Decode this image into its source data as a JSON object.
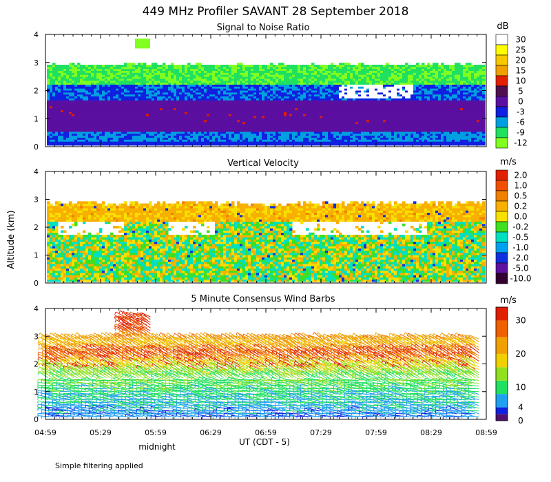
{
  "title": "449 MHz Profiler SAVANT 28 September 2018",
  "panels": {
    "snr": {
      "title": "Signal to Noise Ratio",
      "unit": "dB"
    },
    "vv": {
      "title": "Vertical Velocity",
      "unit": "m/s"
    },
    "wind": {
      "title": "5 Minute Consensus Wind Barbs",
      "unit": "m/s"
    }
  },
  "y_axis_label": "Altitude (km)",
  "x_axis_label": "UT  (CDT - 5)",
  "midnight_label": "midnight",
  "footer_note": "Simple filtering applied",
  "chart_data": [
    {
      "type": "heatmap",
      "title": "Signal to Noise Ratio",
      "xlabel": "UT  (CDT - 5)",
      "ylabel": "Altitude (km)",
      "ylim": [
        0,
        4
      ],
      "yticks": [
        "0",
        "1",
        "2",
        "3",
        "4"
      ],
      "xticks": [
        "04:59",
        "05:29",
        "05:59",
        "06:29",
        "06:59",
        "07:29",
        "07:59",
        "08:29",
        "08:59"
      ],
      "colorbar": {
        "unit": "dB",
        "labels": [
          "30",
          "25",
          "20",
          "15",
          "10",
          "5",
          "0",
          "-3",
          "-6",
          "-9",
          "-12"
        ],
        "colors": [
          "#ffffff",
          "#ffff00",
          "#f8c800",
          "#f0a000",
          "#e02000",
          "#501050",
          "#5a0fa0",
          "#1020e0",
          "#00a0e0",
          "#20e060",
          "#80ff20"
        ]
      },
      "layers": [
        {
          "alt_range_km": [
            0.0,
            0.15
          ],
          "snr_db": "-3 to 0"
        },
        {
          "alt_range_km": [
            0.15,
            0.5
          ],
          "snr_db": "-6 to -3"
        },
        {
          "alt_range_km": [
            0.5,
            1.6
          ],
          "snr_db": "0 to 5"
        },
        {
          "alt_range_km": [
            1.6,
            2.2
          ],
          "snr_db": "-6 to 0"
        },
        {
          "alt_range_km": [
            2.2,
            2.9
          ],
          "snr_db": "-12 to -6"
        }
      ]
    },
    {
      "type": "heatmap",
      "title": "Vertical Velocity",
      "xlabel": "UT  (CDT - 5)",
      "ylabel": "Altitude (km)",
      "ylim": [
        0,
        4
      ],
      "yticks": [
        "0",
        "1",
        "2",
        "3",
        "4"
      ],
      "colorbar": {
        "unit": "m/s",
        "labels": [
          "2.0",
          "1.0",
          "0.5",
          "0.2",
          "0.0",
          "-0.2",
          "-0.5",
          "-1.0",
          "-2.0",
          "-5.0",
          "-10.0"
        ],
        "colors": [
          "#e02000",
          "#f05000",
          "#f08000",
          "#f8b000",
          "#f8e000",
          "#40e020",
          "#00e0c0",
          "#00a0f0",
          "#1030e0",
          "#6010a0",
          "#300030"
        ]
      },
      "typical_range_m_s": [
        -0.5,
        0.5
      ],
      "data_top_km": 2.9
    },
    {
      "type": "scatter",
      "title": "5 Minute Consensus Wind Barbs",
      "xlabel": "UT  (CDT - 5)",
      "ylabel": "Altitude (km)",
      "ylim": [
        0,
        4
      ],
      "yticks": [
        "0",
        "1",
        "2",
        "3",
        "4"
      ],
      "colorbar": {
        "unit": "m/s",
        "labels": [
          "30",
          "20",
          "10",
          "4",
          "0"
        ],
        "segments": [
          {
            "range": [
              0,
              2
            ],
            "color": "#501070"
          },
          {
            "range": [
              2,
              4
            ],
            "color": "#1020e0"
          },
          {
            "range": [
              4,
              8
            ],
            "color": "#20a0f0"
          },
          {
            "range": [
              8,
              12
            ],
            "color": "#20e060"
          },
          {
            "range": [
              12,
              16
            ],
            "color": "#90e020"
          },
          {
            "range": [
              16,
              20
            ],
            "color": "#f0d000"
          },
          {
            "range": [
              20,
              25
            ],
            "color": "#f0a000"
          },
          {
            "range": [
              25,
              30
            ],
            "color": "#f06000"
          },
          {
            "range": [
              30,
              34
            ],
            "color": "#e02000"
          }
        ]
      },
      "wind_profile": [
        {
          "alt_km": 0.3,
          "speed_m_s": 6
        },
        {
          "alt_km": 0.9,
          "speed_m_s": 9
        },
        {
          "alt_km": 1.5,
          "speed_m_s": 12
        },
        {
          "alt_km": 2.0,
          "speed_m_s": 18
        },
        {
          "alt_km": 2.3,
          "speed_m_s": 28
        },
        {
          "alt_km": 2.7,
          "speed_m_s": 20
        },
        {
          "alt_km": 3.3,
          "speed_m_s": 32
        }
      ]
    }
  ]
}
